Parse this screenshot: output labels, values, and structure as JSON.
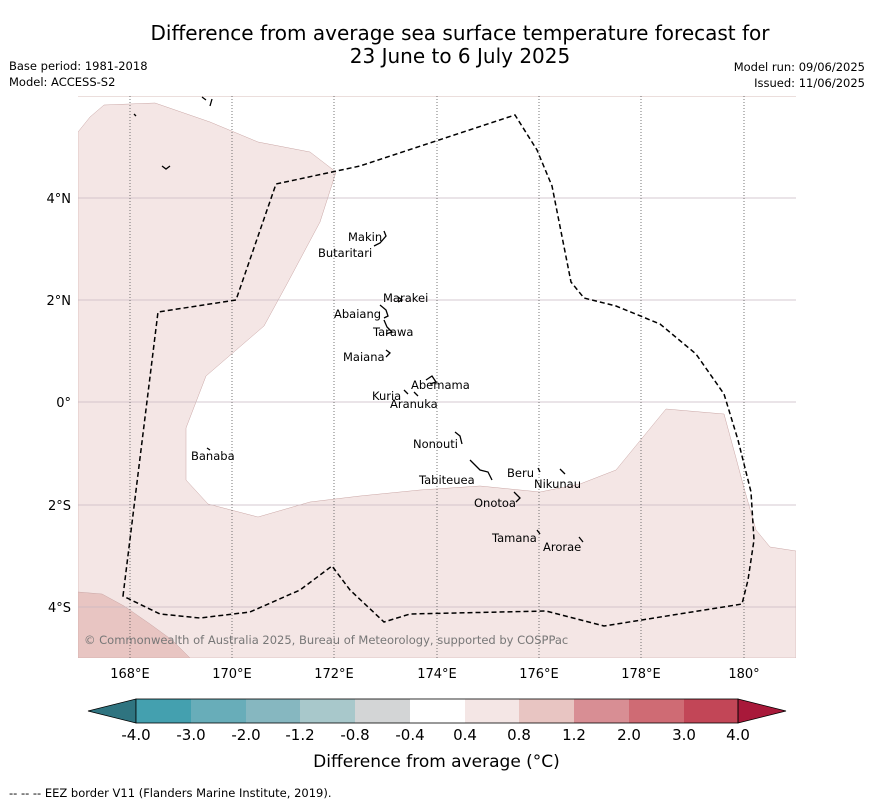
{
  "title": {
    "line1": "Difference from average sea surface temperature forecast for",
    "line2": "23 June to 6 July 2025"
  },
  "meta_left": {
    "base_period": "Base period: 1981-2018",
    "model": "Model: ACCESS-S2"
  },
  "meta_right": {
    "model_run": "Model run: 09/06/2025",
    "issued": "Issued: 11/06/2025"
  },
  "map": {
    "lat_labels": [
      "4°N",
      "2°N",
      "0°",
      "2°S",
      "4°S"
    ],
    "lon_labels": [
      "168°E",
      "170°E",
      "172°E",
      "174°E",
      "176°E",
      "178°E",
      "180°"
    ],
    "places": [
      "Makin",
      "Butaritari",
      "Marakei",
      "Abaiang",
      "Tarawa",
      "Maiana",
      "Abemama",
      "Kuria",
      "Aranuka",
      "Banaba",
      "Nonouti",
      "Beru",
      "Tabiteuea",
      "Nikunau",
      "Onotoa",
      "Tamana",
      "Arorae"
    ],
    "copyright": "© Commonwealth of Australia 2025, Bureau of Meteorology, supported by COSPPac",
    "region_colors": {
      "band_0.4_0.8": "#f4e6e5",
      "band_0.8_1.2": "#e8c5c2",
      "neutral": "#ffffff"
    }
  },
  "colorbar": {
    "title": "Difference from average (°C)",
    "tick_labels": [
      "-4.0",
      "-3.0",
      "-2.0",
      "-1.2",
      "-0.8",
      "-0.4",
      "0.4",
      "0.8",
      "1.2",
      "2.0",
      "3.0",
      "4.0"
    ],
    "colors": [
      "#2f7480",
      "#44a0af",
      "#68adb9",
      "#86b7c0",
      "#a8c8cb",
      "#d3d5d6",
      "#ffffff",
      "#f4e6e5",
      "#e8c5c2",
      "#d88e94",
      "#cf6b74",
      "#c24657",
      "#a8193a"
    ]
  },
  "footer": "--  --  -- EEZ border V11 (Flanders Marine Institute, 2019)."
}
